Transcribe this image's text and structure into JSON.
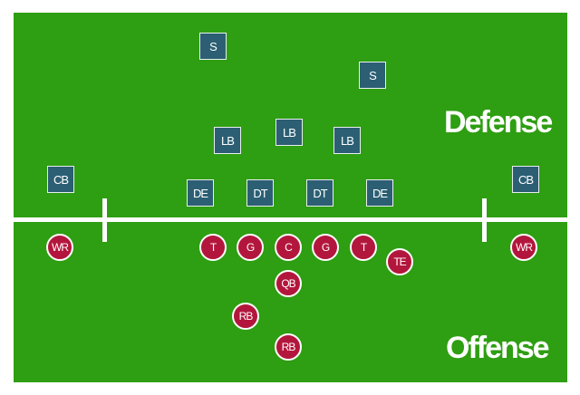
{
  "labels": {
    "defense": "Defense",
    "offense": "Offense"
  },
  "colors": {
    "field": "#2e9e12",
    "defense": "#2c5f73",
    "offense": "#b3163c",
    "lines": "#ffffff"
  },
  "defense": [
    {
      "id": "safety-1",
      "label": "S"
    },
    {
      "id": "safety-2",
      "label": "S"
    },
    {
      "id": "linebacker-1",
      "label": "LB"
    },
    {
      "id": "linebacker-2",
      "label": "LB"
    },
    {
      "id": "linebacker-3",
      "label": "LB"
    },
    {
      "id": "cornerback-left",
      "label": "CB"
    },
    {
      "id": "cornerback-right",
      "label": "CB"
    },
    {
      "id": "defensive-end-left",
      "label": "DE"
    },
    {
      "id": "defensive-tackle-left",
      "label": "DT"
    },
    {
      "id": "defensive-tackle-right",
      "label": "DT"
    },
    {
      "id": "defensive-end-right",
      "label": "DE"
    }
  ],
  "offense": [
    {
      "id": "wide-receiver-left",
      "label": "WR"
    },
    {
      "id": "tackle-left",
      "label": "T"
    },
    {
      "id": "guard-left",
      "label": "G"
    },
    {
      "id": "center",
      "label": "C"
    },
    {
      "id": "guard-right",
      "label": "G"
    },
    {
      "id": "tackle-right",
      "label": "T"
    },
    {
      "id": "tight-end",
      "label": "TE"
    },
    {
      "id": "wide-receiver-right",
      "label": "WR"
    },
    {
      "id": "quarterback",
      "label": "QB"
    },
    {
      "id": "running-back-1",
      "label": "RB"
    },
    {
      "id": "running-back-2",
      "label": "RB"
    }
  ]
}
